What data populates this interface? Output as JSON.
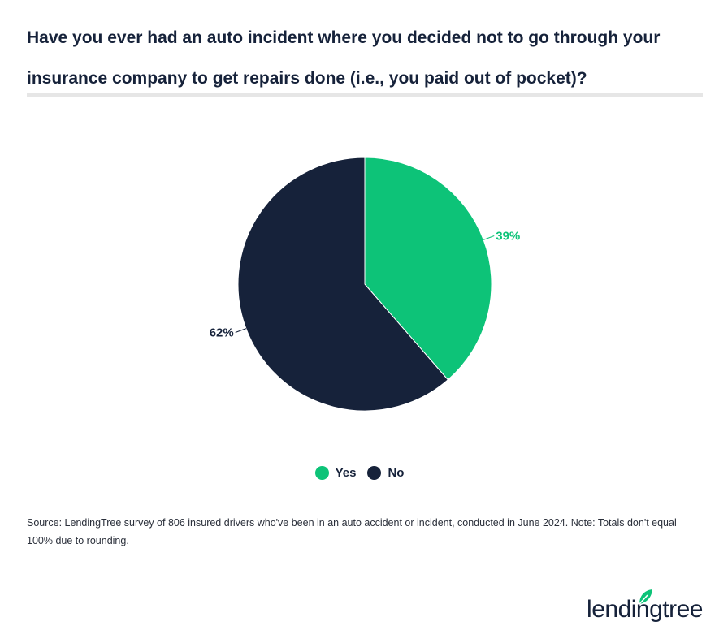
{
  "title": "Have you ever had an auto incident where you decided not to go through your insurance company to get repairs done (i.e., you paid out of pocket)?",
  "chart_data": {
    "type": "pie",
    "categories": [
      "Yes",
      "No"
    ],
    "values": [
      39,
      62
    ],
    "labels": [
      "39%",
      "62%"
    ],
    "colors": [
      "#0dc378",
      "#16223a"
    ],
    "legend": "bottom"
  },
  "legend": {
    "items": [
      {
        "label": "Yes",
        "color": "#0dc378"
      },
      {
        "label": "No",
        "color": "#16223a"
      }
    ]
  },
  "source": "Source: LendingTree survey of 806 insured drivers who've been in an auto accident or incident, conducted in June 2024. Note: Totals don't equal 100% due to rounding.",
  "brand": {
    "logo_text": "lendingtree",
    "accent": "#0dc378"
  }
}
